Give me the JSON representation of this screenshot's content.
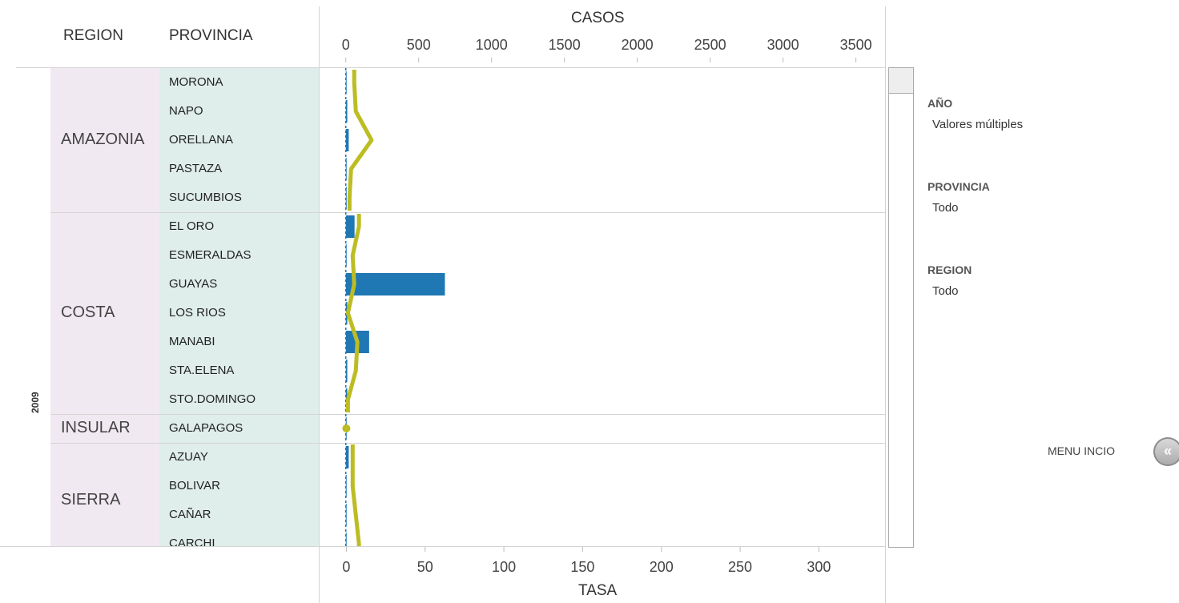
{
  "headers": {
    "region": "REGION",
    "provincia": "PROVINCIA"
  },
  "chart_data": {
    "type": "bar",
    "year": "2009",
    "top_axis": {
      "title": "CASOS",
      "ticks": [
        "0",
        "500",
        "1000",
        "1500",
        "2000",
        "2500",
        "3000",
        "3500"
      ],
      "range": [
        -180,
        3700
      ]
    },
    "bottom_axis": {
      "title": "TASA",
      "ticks": [
        "0",
        "50",
        "100",
        "150",
        "200",
        "250",
        "300"
      ],
      "range": [
        -17,
        342
      ]
    },
    "bar_color": "#1f77b4",
    "line_color": "#bcbd22",
    "regions": [
      {
        "name": "AMAZONIA",
        "provinces": [
          "MORONA",
          "NAPO",
          "ORELLANA",
          "PASTAZA",
          "SUCUMBIOS"
        ]
      },
      {
        "name": "COSTA",
        "provinces": [
          "EL ORO",
          "ESMERALDAS",
          "GUAYAS",
          "LOS RIOS",
          "MANABI",
          "STA.ELENA",
          "STO.DOMINGO"
        ]
      },
      {
        "name": "INSULAR",
        "provinces": [
          "GALAPAGOS"
        ]
      },
      {
        "name": "SIERRA",
        "provinces": [
          "AZUAY",
          "BOLIVAR",
          "CAÑAR",
          "CARCHI"
        ]
      }
    ],
    "categories": [
      "MORONA",
      "NAPO",
      "ORELLANA",
      "PASTAZA",
      "SUCUMBIOS",
      "EL ORO",
      "ESMERALDAS",
      "GUAYAS",
      "LOS RIOS",
      "MANABI",
      "STA.ELENA",
      "STO.DOMINGO",
      "GALAPAGOS",
      "AZUAY",
      "BOLIVAR",
      "CAÑAR",
      "CARCHI"
    ],
    "series": [
      {
        "name": "CASOS",
        "values": [
          5,
          10,
          20,
          5,
          5,
          60,
          5,
          680,
          10,
          160,
          10,
          10,
          5,
          20,
          5,
          5,
          5
        ]
      },
      {
        "name": "TASA",
        "values": [
          5,
          6,
          16,
          3,
          2,
          8,
          4,
          5,
          1,
          7,
          6,
          1,
          0,
          4,
          4,
          6,
          8
        ]
      }
    ]
  },
  "filters": [
    {
      "title": "AÑO",
      "value": "Valores múltiples"
    },
    {
      "title": "PROVINCIA",
      "value": "Todo"
    },
    {
      "title": "REGION",
      "value": "Todo"
    }
  ],
  "menu": {
    "label": "MENU INCIO",
    "icon": "double-chevron-left-icon",
    "glyph": "«"
  }
}
